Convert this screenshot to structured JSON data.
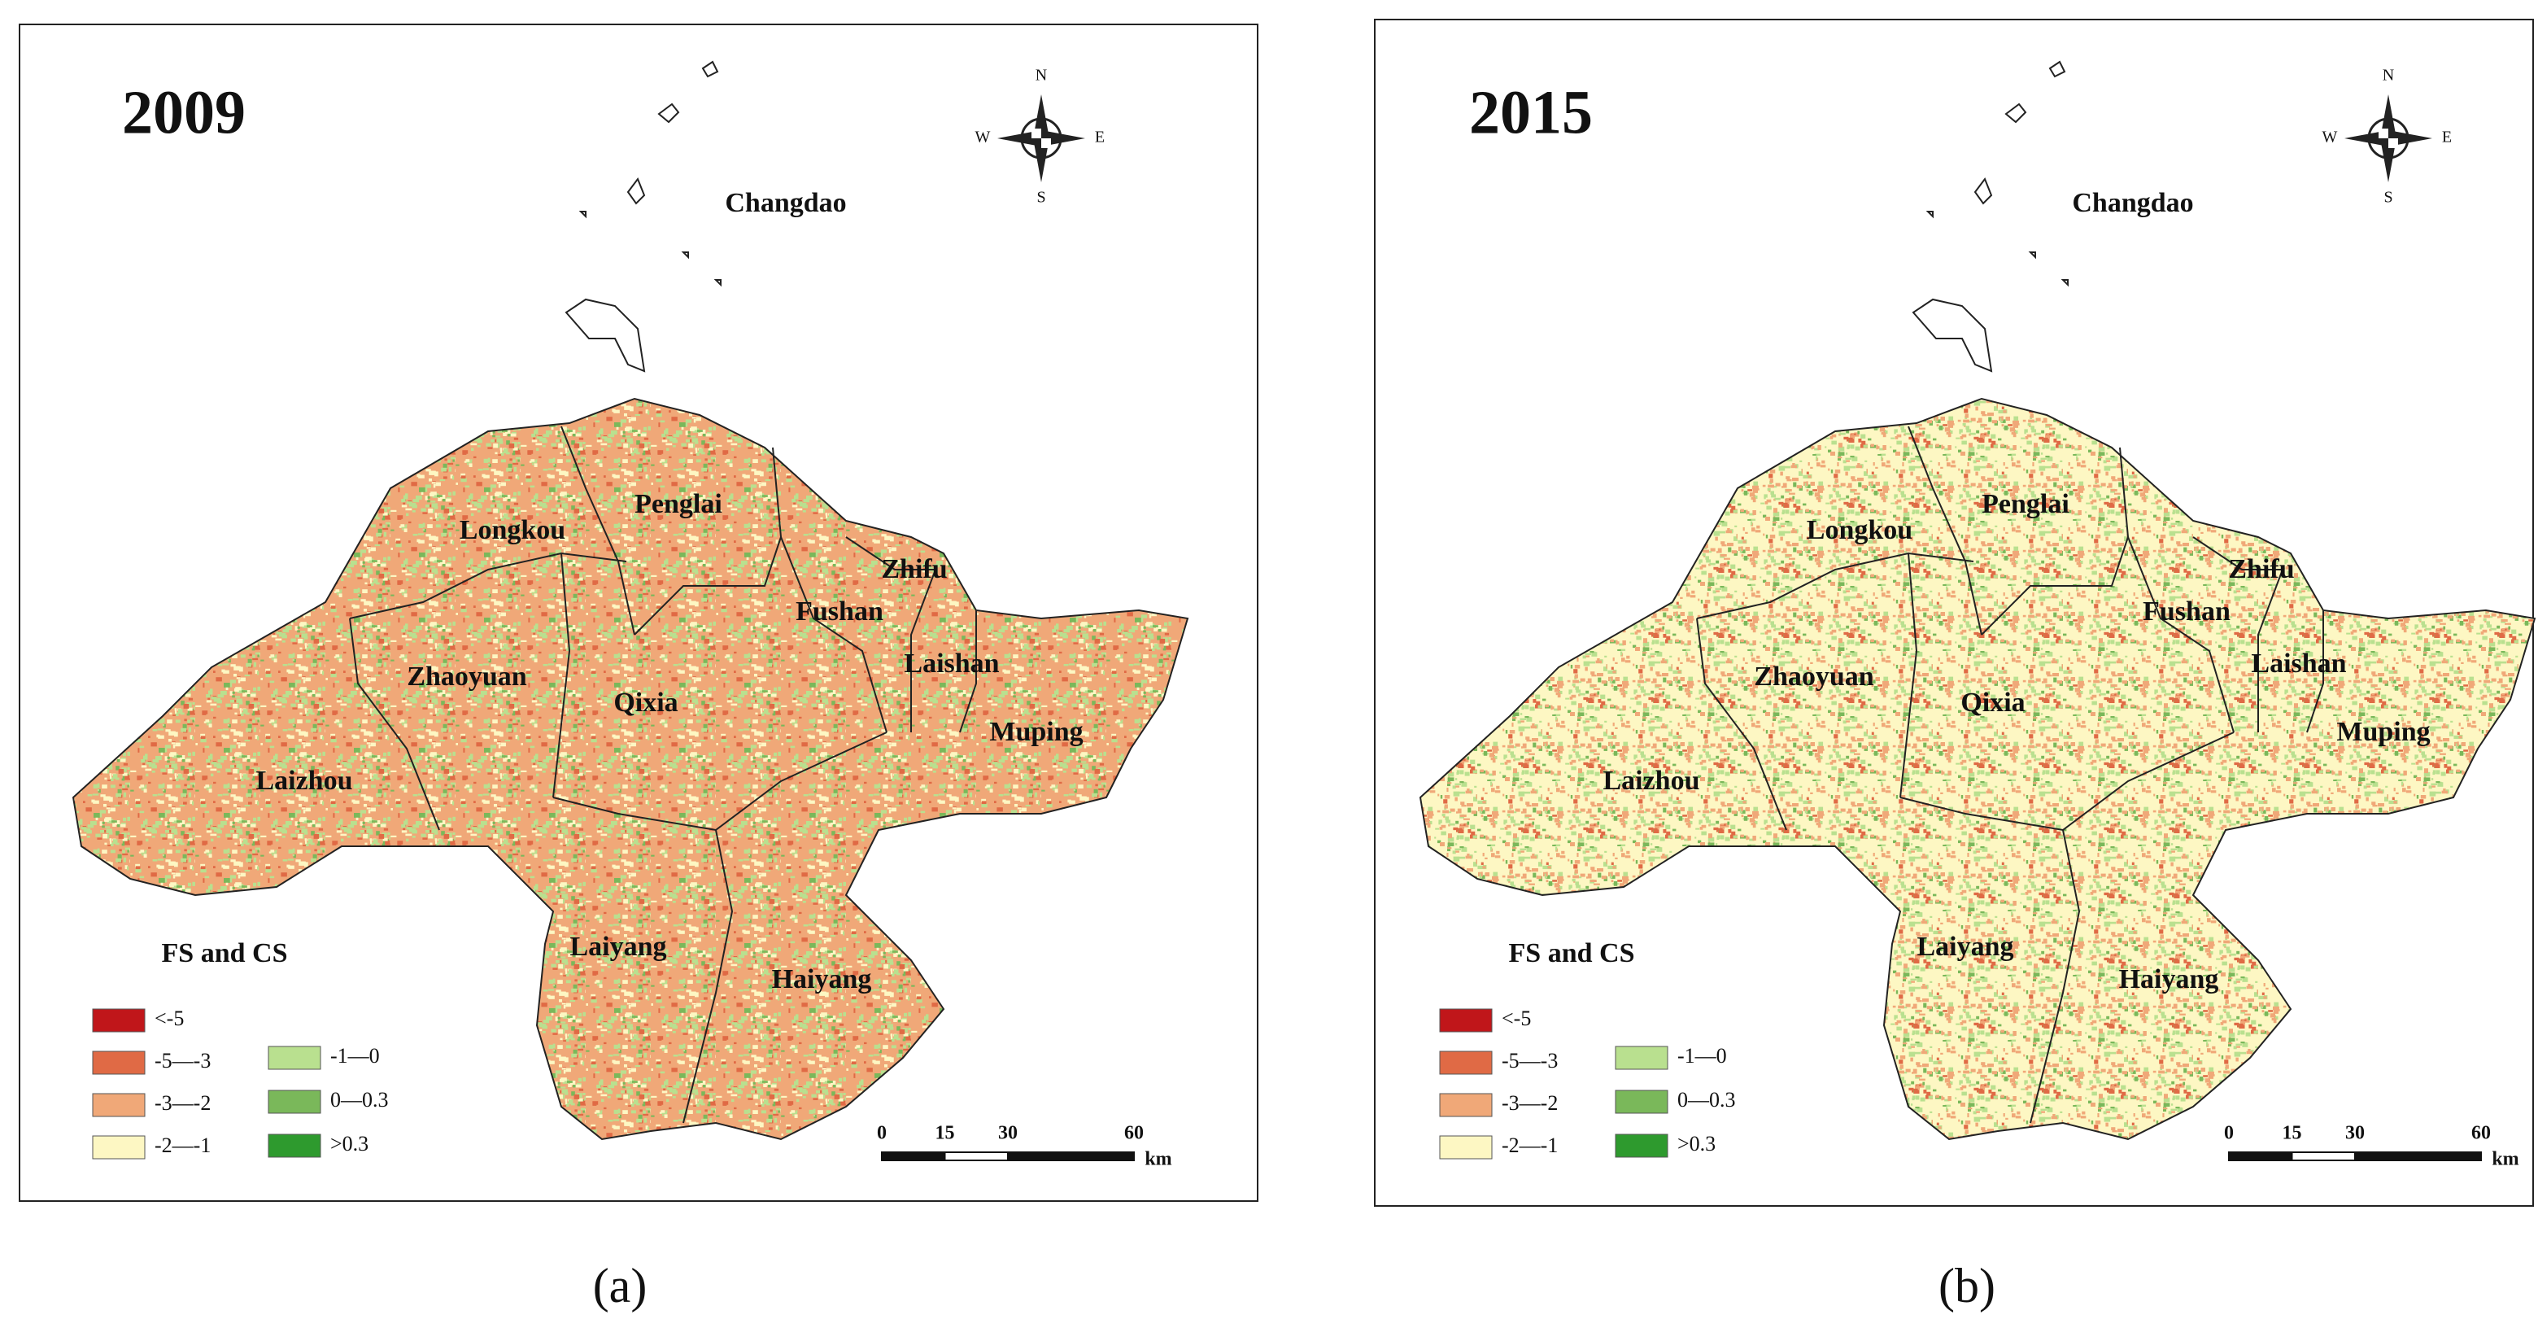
{
  "panels": [
    {
      "year": "2009",
      "tag": "(a)"
    },
    {
      "year": "2015",
      "tag": "(b)"
    }
  ],
  "place": "Changdao",
  "districts": [
    "Longkou",
    "Penglai",
    "Zhifu",
    "Fushan",
    "Laishan",
    "Zhaoyuan",
    "Qixia",
    "Muping",
    "Laizhou",
    "Laiyang",
    "Haiyang"
  ],
  "compass": {
    "n": "N",
    "s": "S",
    "w": "W",
    "e": "E"
  },
  "legend": {
    "title": "FS and CS",
    "items": [
      {
        "label": "<-5",
        "color": "#c0161a"
      },
      {
        "label": "-5—-3",
        "color": "#e06a45"
      },
      {
        "label": "-3—-2",
        "color": "#f0a878"
      },
      {
        "label": "-2—-1",
        "color": "#fdf7c3"
      },
      {
        "label": "-1—0",
        "color": "#b9e08f"
      },
      {
        "label": "0—0.3",
        "color": "#7ab85a"
      },
      {
        "label": ">0.3",
        "color": "#2e9a2e"
      }
    ]
  },
  "scale": {
    "ticks": [
      0,
      15,
      30,
      60
    ],
    "unit": "km"
  }
}
